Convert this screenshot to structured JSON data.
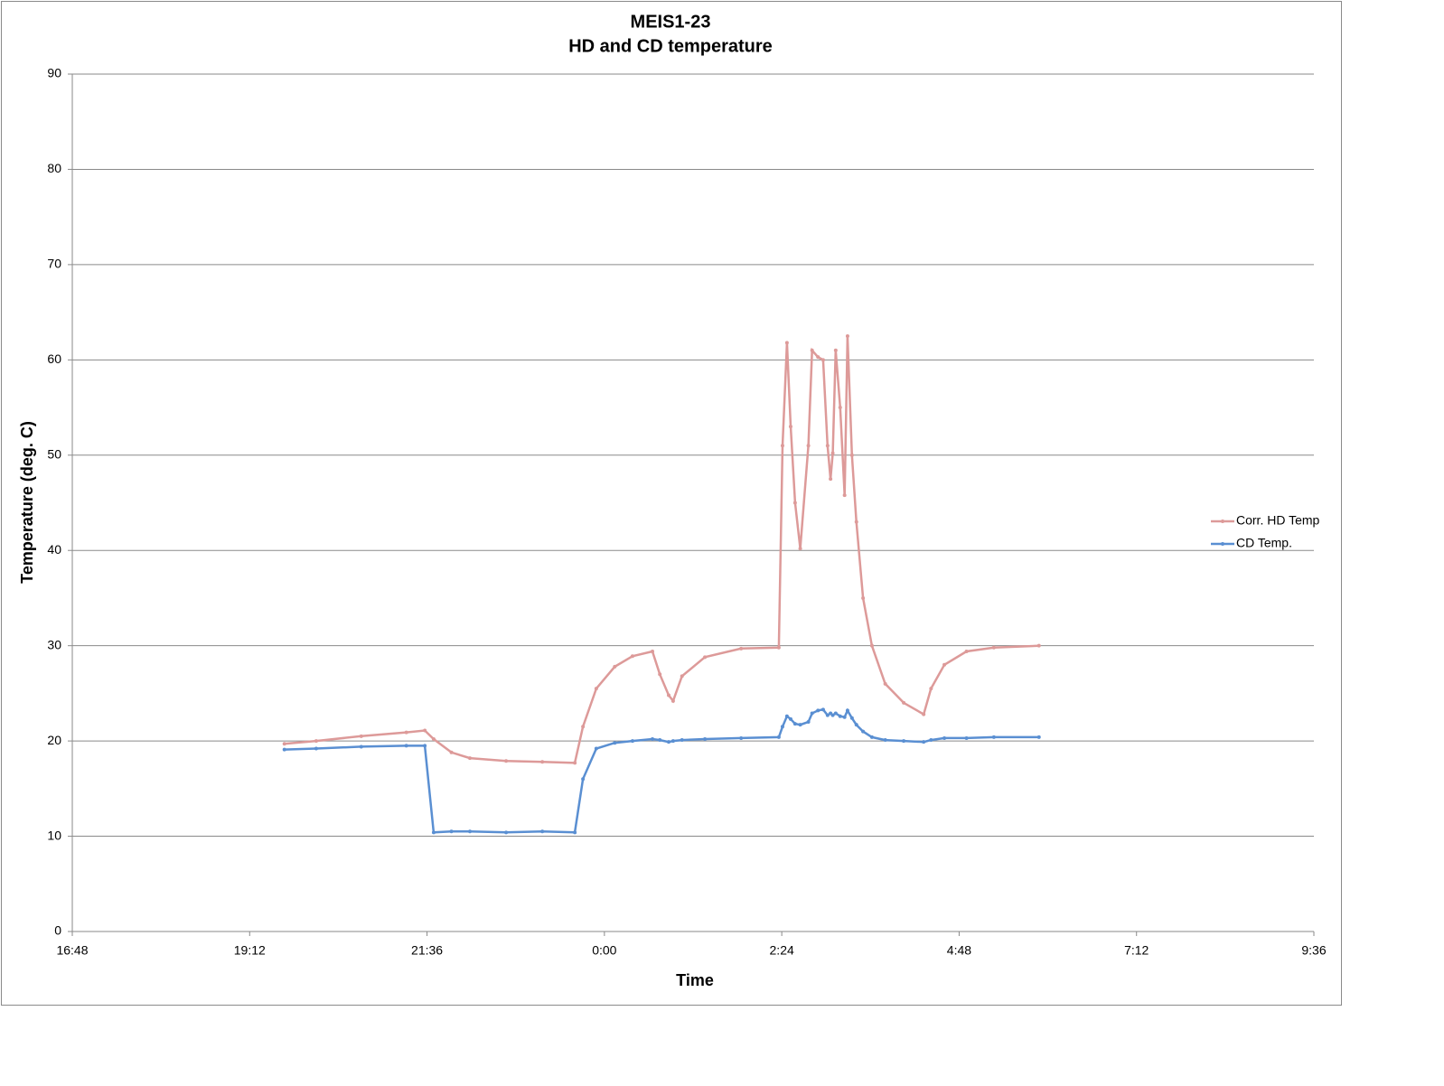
{
  "chart_data": {
    "type": "line",
    "title": "MEIS1-23",
    "subtitle": "HD and CD temperature",
    "x_label": "Time",
    "y_label": "Temperature (deg. C)",
    "x": [
      19.67,
      20.1,
      20.71,
      21.32,
      21.57,
      21.69,
      21.93,
      22.18,
      22.67,
      23.16,
      23.6,
      23.71,
      23.89,
      24.14,
      24.38,
      24.65,
      24.75,
      24.87,
      24.93,
      25.05,
      25.36,
      25.85,
      26.36,
      26.41,
      26.47,
      26.52,
      26.58,
      26.65,
      26.76,
      26.81,
      26.89,
      26.96,
      27.02,
      27.06,
      27.09,
      27.13,
      27.19,
      27.25,
      27.29,
      27.35,
      27.41,
      27.5,
      27.62,
      27.8,
      28.05,
      28.32,
      28.42,
      28.6,
      28.9,
      29.27,
      29.88
    ],
    "series": [
      {
        "name": "Corr. HD Temp",
        "color": "#dd9a99",
        "values": [
          19.7,
          20.0,
          20.5,
          20.9,
          21.1,
          20.2,
          18.8,
          18.2,
          17.9,
          17.8,
          17.7,
          21.5,
          25.5,
          27.8,
          28.9,
          29.4,
          27.0,
          24.8,
          24.2,
          26.8,
          28.8,
          29.7,
          29.8,
          51.0,
          61.8,
          53.0,
          45.0,
          40.2,
          51.0,
          61.0,
          60.3,
          60.0,
          51.0,
          47.5,
          50.2,
          61.0,
          55.0,
          45.8,
          62.5,
          50.0,
          43.0,
          35.0,
          30.0,
          26.0,
          24.0,
          22.8,
          25.5,
          28.0,
          29.4,
          29.8,
          30.0
        ]
      },
      {
        "name": "CD Temp.",
        "color": "#5a8fd2",
        "values": [
          19.1,
          19.2,
          19.4,
          19.5,
          19.5,
          10.4,
          10.5,
          10.5,
          10.4,
          10.5,
          10.4,
          16.0,
          19.2,
          19.8,
          20.0,
          20.2,
          20.1,
          19.9,
          20.0,
          20.1,
          20.2,
          20.3,
          20.4,
          21.5,
          22.6,
          22.3,
          21.8,
          21.7,
          22.0,
          22.9,
          23.2,
          23.3,
          22.7,
          22.9,
          22.7,
          22.9,
          22.6,
          22.5,
          23.2,
          22.4,
          21.7,
          21.0,
          20.4,
          20.1,
          20.0,
          19.9,
          20.1,
          20.3,
          20.3,
          20.4,
          20.4
        ]
      }
    ],
    "xlim": [
      16.8,
      33.6
    ],
    "xticks": [
      {
        "value": 16.8,
        "label": "16:48"
      },
      {
        "value": 19.2,
        "label": "19:12"
      },
      {
        "value": 21.6,
        "label": "21:36"
      },
      {
        "value": 24,
        "label": "0:00"
      },
      {
        "value": 26.4,
        "label": "2:24"
      },
      {
        "value": 28.8,
        "label": "4:48"
      },
      {
        "value": 31.2,
        "label": "7:12"
      },
      {
        "value": 33.6,
        "label": "9:36"
      }
    ],
    "ylim": [
      0,
      90
    ],
    "yticks": [
      0,
      10,
      20,
      30,
      40,
      50,
      60,
      70,
      80,
      90
    ],
    "grid": true,
    "legend": "right"
  }
}
